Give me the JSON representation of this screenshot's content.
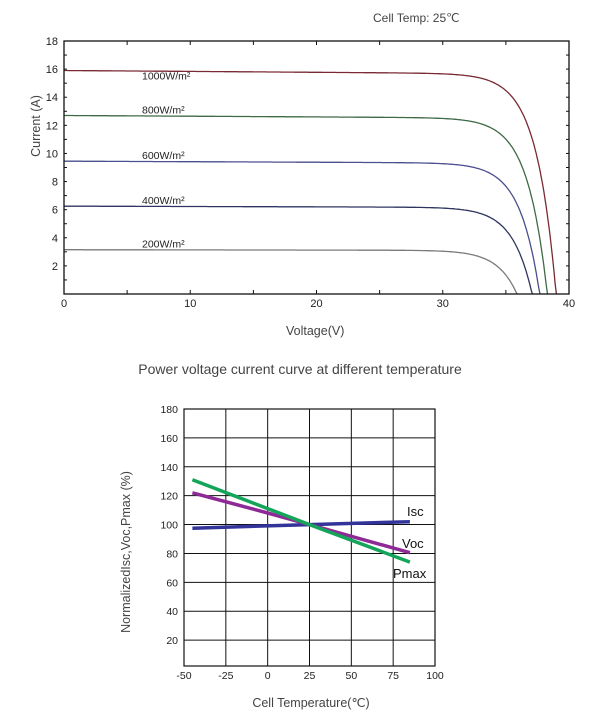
{
  "chart_data": [
    {
      "type": "line",
      "title": "",
      "annotation": "Cell Temp:  25℃",
      "xlabel": "Voltage(V)",
      "ylabel": "Current  (A)",
      "xlim": [
        0,
        40
      ],
      "ylim": [
        0,
        18
      ],
      "xticks": [
        "0",
        "10",
        "20",
        "30",
        "40"
      ],
      "yticks": [
        "2",
        "4",
        "6",
        "8",
        "10",
        "12",
        "14",
        "16",
        "18"
      ],
      "series": [
        {
          "name": "1000W/m²",
          "isc": 15.9,
          "voc": 39.0,
          "color": "#7a2a35"
        },
        {
          "name": "800W/m²",
          "isc": 12.7,
          "voc": 38.3,
          "color": "#3f6a45"
        },
        {
          "name": "600W/m²",
          "isc": 9.45,
          "voc": 37.7,
          "color": "#4a4f8e"
        },
        {
          "name": "400W/m²",
          "isc": 6.25,
          "voc": 37.1,
          "color": "#2f3560"
        },
        {
          "name": "200W/m²",
          "isc": 3.15,
          "voc": 35.9,
          "color": "#7a7a7a"
        }
      ]
    },
    {
      "type": "line",
      "title": "Power voltage current curve at different temperature",
      "xlabel": "Cell Temperature(℃)",
      "ylabel": "NormalizedIsc,Voc,Pmax  (%)",
      "xlim": [
        -50,
        100
      ],
      "ylim": [
        0,
        180
      ],
      "grid": true,
      "xticks": [
        "-50",
        "-25",
        "0",
        "25",
        "50",
        "75",
        "100"
      ],
      "yticks": [
        "20",
        "40",
        "60",
        "80",
        "100",
        "120",
        "140",
        "160",
        "180"
      ],
      "series": [
        {
          "name": "Isc",
          "x": [
            -45,
            25,
            85
          ],
          "y": [
            97.5,
            100,
            102
          ],
          "color": "#33349a"
        },
        {
          "name": "Voc",
          "x": [
            -45,
            0,
            25,
            85
          ],
          "y": [
            122,
            108,
            100,
            80.5
          ],
          "color": "#8e2a95"
        },
        {
          "name": "Pmax",
          "x": [
            -45,
            25,
            85
          ],
          "y": [
            131,
            100,
            74
          ],
          "color": "#14a55a"
        }
      ]
    }
  ]
}
